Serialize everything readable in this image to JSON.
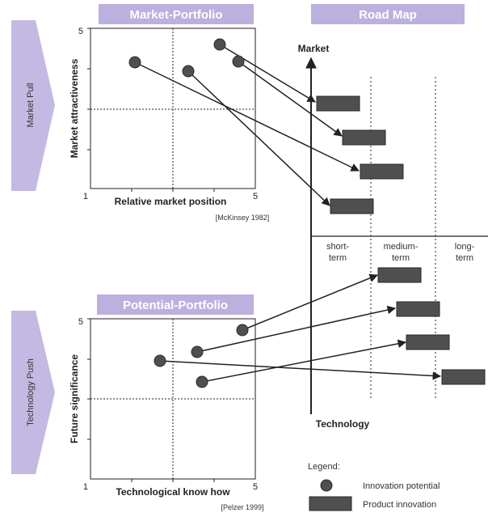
{
  "colors": {
    "banner_bg": "#bcb0de",
    "banner_text": "#ffffff",
    "arrow_fill": "#c4b9e2",
    "arrow_text": "#333333",
    "dot": "#4f4f4f",
    "box": "#4f4f4f",
    "line": "#222222"
  },
  "left_arrows": {
    "top": "Market Pull",
    "bottom": "Technology Push"
  },
  "market_portfolio": {
    "banner": "Market-Portfolio",
    "y_axis_label": "Market attractiveness",
    "x_axis_label": "Relative market position",
    "y_max_tick": "5",
    "origin_tick": "1",
    "x_max_tick": "5",
    "source": "[McKinsey 1982]"
  },
  "potential_portfolio": {
    "banner": "Potential-Portfolio",
    "y_axis_label": "Future significance",
    "x_axis_label": "Technological know how",
    "y_max_tick": "5",
    "origin_tick": "1",
    "x_max_tick": "5",
    "source": "[Pelzer 1999]"
  },
  "road_map": {
    "banner": "Road Map",
    "top_axis_label": "Market",
    "bottom_axis_label": "Technology",
    "periods": [
      {
        "line1": "short-",
        "line2": "term"
      },
      {
        "line1": "medium-",
        "line2": "term"
      },
      {
        "line1": "long-",
        "line2": "term"
      }
    ]
  },
  "legend": {
    "title": "Legend:",
    "innovation_potential": "Innovation potential",
    "product_innovation": "Product innovation"
  }
}
